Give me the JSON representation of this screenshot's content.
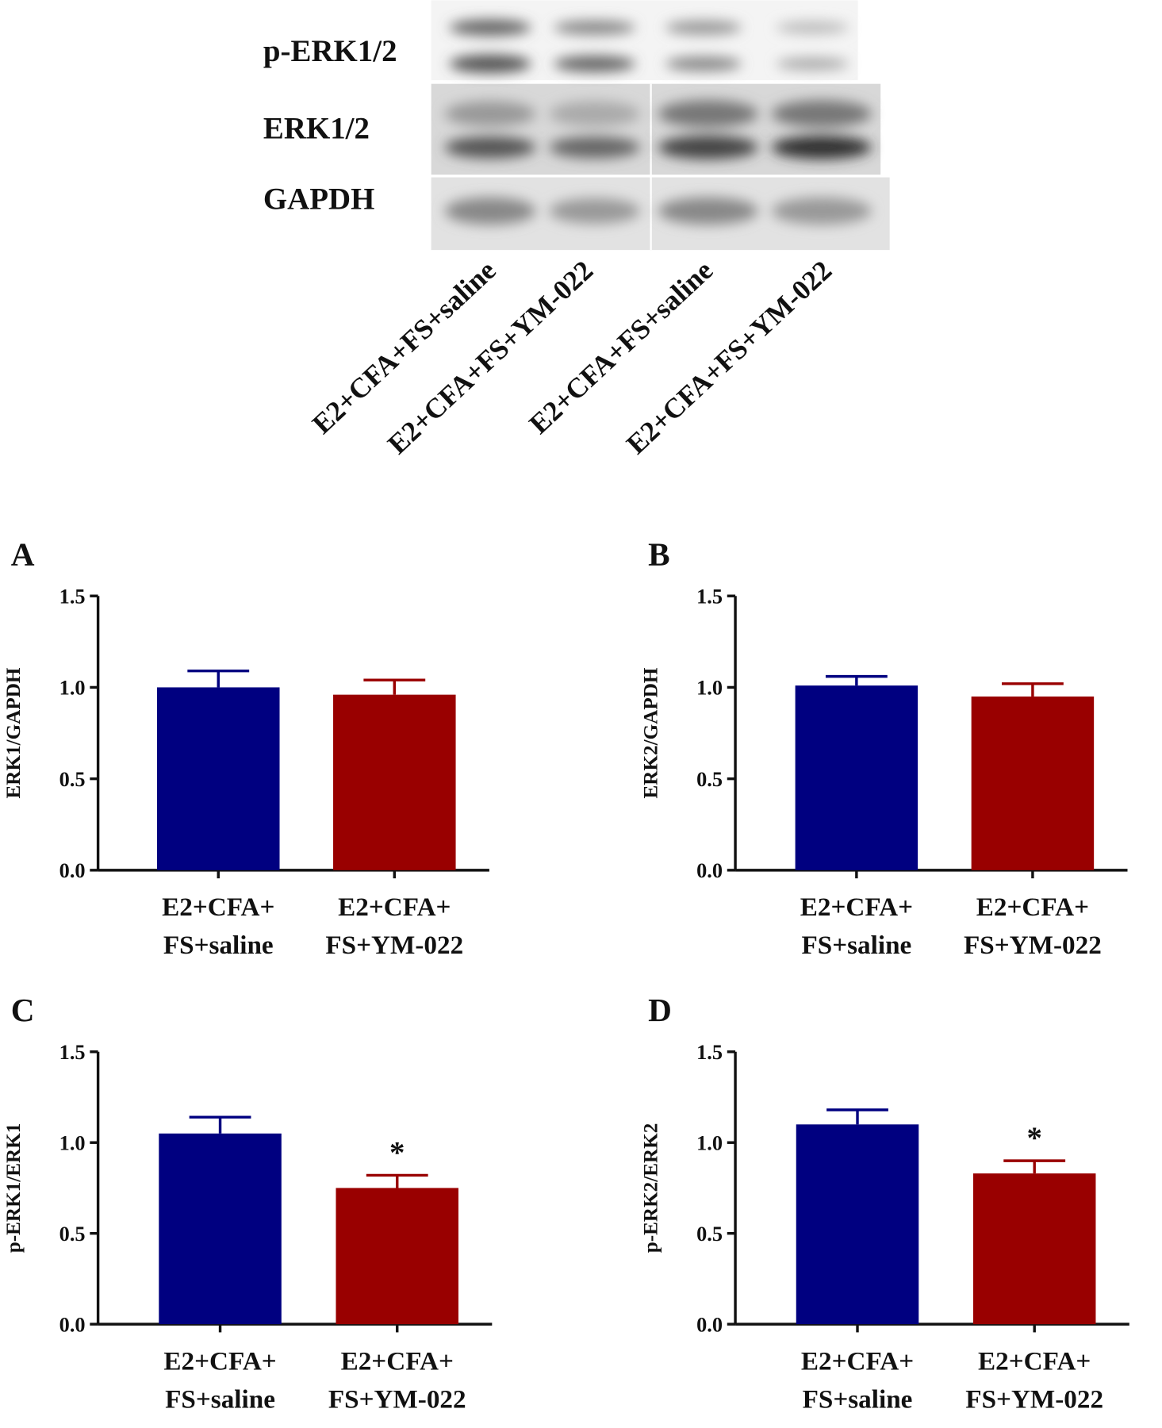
{
  "blot": {
    "rows": [
      "p-ERK1/2",
      "ERK1/2",
      "GAPDH"
    ],
    "lanes": [
      "E2+CFA+FS+saline",
      "E2+CFA+FS+YM-022",
      "E2+CFA+FS+saline",
      "E2+CFA+FS+YM-022"
    ]
  },
  "chart_data": [
    {
      "type": "bar",
      "panel": "A",
      "ylabel": "ERK1/GAPDH",
      "categories": [
        "E2+CFA+\nFS+saline",
        "E2+CFA+\nFS+YM-022"
      ],
      "values": [
        1.0,
        0.96
      ],
      "errors": [
        0.09,
        0.08
      ],
      "colors": [
        "#000080",
        "#990000"
      ],
      "ylim": [
        0,
        1.5
      ],
      "yticks": [
        {
          "value": 0,
          "label": "0.0"
        },
        0.5,
        {
          "value": 1,
          "label": "1.0"
        },
        1.5
      ]
    },
    {
      "type": "bar",
      "panel": "B",
      "ylabel": "ERK2/GAPDH",
      "categories": [
        "E2+CFA+\nFS+saline",
        "E2+CFA+\nFS+YM-022"
      ],
      "values": [
        1.01,
        0.95
      ],
      "errors": [
        0.05,
        0.07
      ],
      "colors": [
        "#000080",
        "#990000"
      ],
      "ylim": [
        0,
        1.5
      ],
      "yticks": [
        {
          "value": 0,
          "label": "0.0"
        },
        0.5,
        {
          "value": 1,
          "label": "1.0"
        },
        1.5
      ]
    },
    {
      "type": "bar",
      "panel": "C",
      "ylabel": "p-ERK1/ERK1",
      "categories": [
        "E2+CFA+\nFS+saline",
        "E2+CFA+\nFS+YM-022"
      ],
      "values": [
        1.05,
        0.75
      ],
      "errors": [
        0.09,
        0.07
      ],
      "significance": [
        null,
        "*"
      ],
      "colors": [
        "#000080",
        "#990000"
      ],
      "ylim": [
        0,
        1.5
      ],
      "yticks": [
        {
          "value": 0,
          "label": "0.0"
        },
        0.5,
        {
          "value": 1,
          "label": "1.0"
        },
        1.5
      ]
    },
    {
      "type": "bar",
      "panel": "D",
      "ylabel": "p-ERK2/ERK2",
      "categories": [
        "E2+CFA+\nFS+saline",
        "E2+CFA+\nFS+YM-022"
      ],
      "values": [
        1.1,
        0.83
      ],
      "errors": [
        0.08,
        0.07
      ],
      "significance": [
        null,
        "*"
      ],
      "colors": [
        "#000080",
        "#990000"
      ],
      "ylim": [
        0,
        1.5
      ],
      "yticks": [
        {
          "value": 0,
          "label": "0.0"
        },
        0.5,
        {
          "value": 1,
          "label": "1.0"
        },
        1.5
      ]
    }
  ]
}
